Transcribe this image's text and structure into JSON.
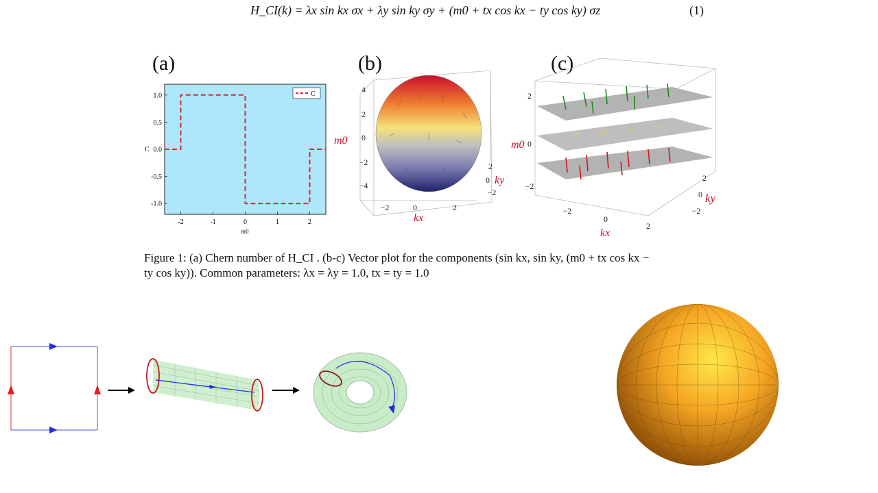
{
  "equation": {
    "text": "H_CI(k) = λx sin kx σx + λy sin ky σy + (m0 + tx cos kx − ty cos ky) σz",
    "number": "(1)"
  },
  "panels": {
    "a": {
      "label": "(a)"
    },
    "b": {
      "label": "(b)"
    },
    "c": {
      "label": "(c)"
    }
  },
  "chart_data": {
    "type": "line",
    "x": [
      -2.5,
      -2,
      -2,
      0,
      0,
      2,
      2,
      2.5
    ],
    "series": [
      {
        "name": "C",
        "values": [
          0,
          0,
          1,
          1,
          -1,
          -1,
          0,
          0
        ]
      }
    ],
    "xlabel": "m0",
    "ylabel": "C",
    "xlim": [
      -2.5,
      2.5
    ],
    "ylim": [
      -1.2,
      1.2
    ],
    "xticks": [
      "-2",
      "-1",
      "0",
      "1",
      "2"
    ],
    "yticks": [
      "1.0",
      "0.5",
      "0.0",
      "-0.5",
      "-1.0"
    ],
    "legend": "top-right",
    "background": "#aee6fb",
    "line_color": "#d8282e"
  },
  "panel_b": {
    "zlabel": "m0",
    "xlabel": "kx",
    "ylabel": "ky",
    "zticks": [
      "4",
      "2",
      "0",
      "−2",
      "−4"
    ],
    "xticks": [
      "−2",
      "0",
      "2"
    ],
    "yticks": [
      "2",
      "0",
      "−2"
    ]
  },
  "panel_c": {
    "zlabel": "m0",
    "xlabel": "kx",
    "ylabel": "ky",
    "zticks": [
      "2",
      "0",
      "−2"
    ],
    "xticks": [
      "−2",
      "0",
      "2"
    ],
    "yticks": [
      "2",
      "0",
      "−2"
    ]
  },
  "caption": {
    "line1": "Figure 1: (a) Chern number of H_CI . (b-c) Vector plot for the components (sin kx, sin ky, (m0 + tx cos kx −",
    "line2": "ty cos ky)). Common parameters: λx = λy = 1.0, tx = ty = 1.0"
  },
  "colors": {
    "red_edge": "#e02020",
    "blue_edge": "#2030e0",
    "cylinder_fill": "#bfe9bf",
    "sphere_color": "#f5a623"
  }
}
